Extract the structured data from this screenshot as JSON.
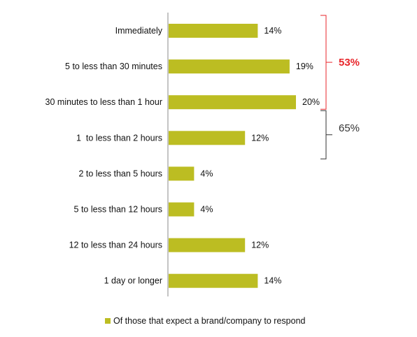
{
  "chart_data": {
    "type": "bar",
    "orientation": "horizontal",
    "categories": [
      "Immediately",
      "5 to less than 30 minutes",
      "30 minutes to less than 1 hour",
      "1  to less than 2 hours",
      "2 to less than 5 hours",
      "5 to less than 12 hours",
      "12 to less than 24 hours",
      "1 day or longer"
    ],
    "series": [
      {
        "name": "Of those that expect a brand/company to respond",
        "values": [
          14,
          19,
          20,
          12,
          4,
          4,
          12,
          14
        ],
        "value_labels": [
          "14%",
          "19%",
          "20%",
          "12%",
          "4%",
          "4%",
          "12%",
          "14%"
        ]
      }
    ],
    "xlim": [
      0,
      25
    ],
    "grid": false,
    "legend_position": "bottom",
    "annotations": [
      {
        "text": "53%",
        "span_categories": [
          0,
          2
        ],
        "color": "#e8262b"
      },
      {
        "text": "65%",
        "span_categories": [
          2,
          3
        ],
        "color": "#333333"
      }
    ],
    "colors": {
      "bar": "#bcbd22",
      "axis": "#888888"
    }
  }
}
